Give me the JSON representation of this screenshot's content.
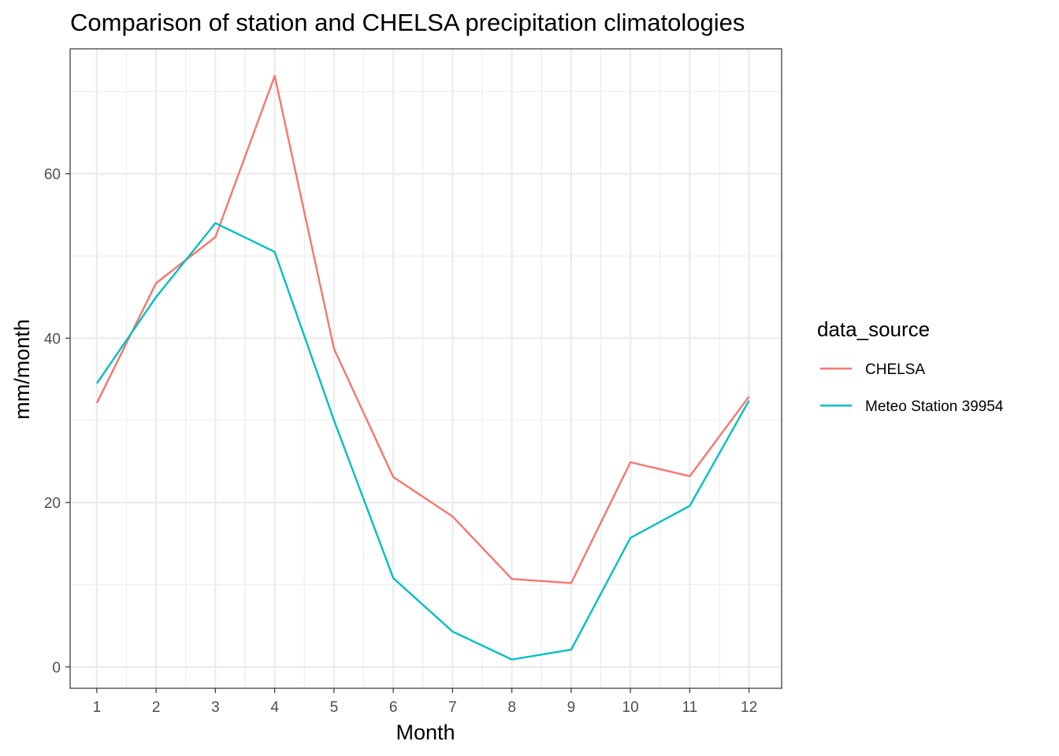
{
  "chart_data": {
    "type": "line",
    "title": "Comparison of station and CHELSA precipitation climatologies",
    "xlabel": "Month",
    "ylabel": "mm/month",
    "x": [
      1,
      2,
      3,
      4,
      5,
      6,
      7,
      8,
      9,
      10,
      11,
      12
    ],
    "x_ticks": [
      "1",
      "2",
      "3",
      "4",
      "5",
      "6",
      "7",
      "8",
      "9",
      "10",
      "11",
      "12"
    ],
    "xlim": [
      0.55,
      12.55
    ],
    "y_ticks": [
      0,
      20,
      40,
      60
    ],
    "ylim": [
      -2.6,
      75.2
    ],
    "grid": true,
    "legend": {
      "title": "data_source",
      "position": "right"
    },
    "series": [
      {
        "name": "CHELSA",
        "color": "#F8766D",
        "values": [
          32.1,
          46.7,
          52.3,
          71.9,
          38.7,
          23.1,
          18.3,
          10.7,
          10.2,
          24.9,
          23.2,
          32.9
        ]
      },
      {
        "name": "Meteo Station 39954",
        "color": "#00BFC4",
        "values": [
          34.5,
          45.0,
          54.0,
          50.5,
          30.0,
          10.8,
          4.3,
          0.9,
          2.1,
          15.7,
          19.6,
          32.4
        ]
      }
    ]
  }
}
